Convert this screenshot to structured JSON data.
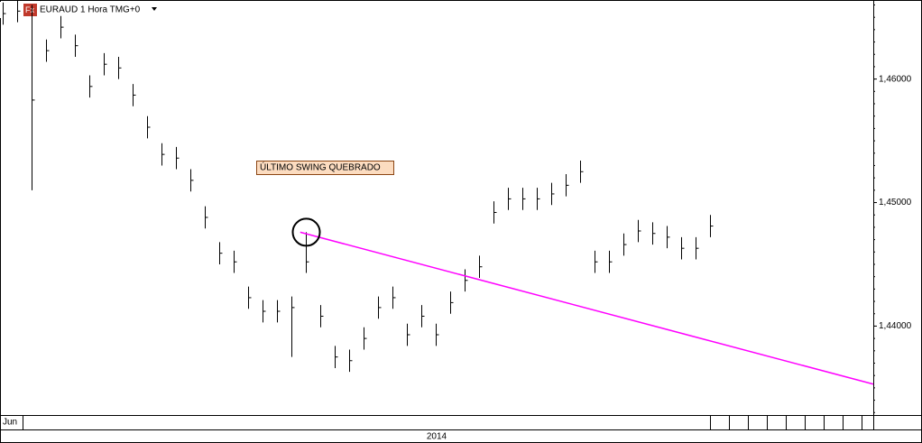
{
  "chart_data": {
    "type": "ohlc",
    "title": "EURAUD 1 Hora TMG+0",
    "annotation": "ÚLTIMO SWING QUEBRADO",
    "period_label": "Jun",
    "year_label": "2014",
    "color": "#000000",
    "trendline": {
      "color": "#ff00ff",
      "points": [
        [
          20.8,
          1.4476
        ],
        [
          60.5,
          1.4353
        ]
      ]
    },
    "circle_at": 21,
    "xlim": [
      0,
      60.5
    ],
    "ylim": [
      1.4328,
      1.4664
    ],
    "yticks": [
      {
        "value": 1.44,
        "label": "1,44000"
      },
      {
        "value": 1.45,
        "label": "1,45000"
      },
      {
        "value": 1.46,
        "label": "1,46000"
      }
    ],
    "high": [
      1.4662,
      1.4664,
      1.466,
      1.4632,
      1.4651,
      1.4636,
      1.4603,
      1.4621,
      1.4618,
      1.4596,
      1.457,
      1.4548,
      1.4545,
      1.4527,
      1.4497,
      1.4468,
      1.4461,
      1.4432,
      1.4421,
      1.4421,
      1.4424,
      1.4476,
      1.4417,
      1.4384,
      1.4381,
      1.4399,
      1.4424,
      1.4432,
      1.4402,
      1.4417,
      1.4402,
      1.4428,
      1.4446,
      1.4457,
      1.4501,
      1.4512,
      1.4512,
      1.4512,
      1.4516,
      1.4523,
      1.4534,
      1.4461,
      1.4461,
      1.4475,
      1.4486,
      1.4484,
      1.4481,
      1.4472,
      1.4472,
      1.449
    ],
    "low": [
      1.4644,
      1.4646,
      1.451,
      1.4614,
      1.4633,
      1.4618,
      1.4585,
      1.4603,
      1.46,
      1.4578,
      1.4552,
      1.453,
      1.4527,
      1.4509,
      1.4479,
      1.445,
      1.4443,
      1.4414,
      1.4403,
      1.4403,
      1.4375,
      1.4443,
      1.4399,
      1.4366,
      1.4363,
      1.4381,
      1.4406,
      1.4414,
      1.4384,
      1.4399,
      1.4384,
      1.441,
      1.4428,
      1.4439,
      1.4483,
      1.4494,
      1.4494,
      1.4494,
      1.4498,
      1.4505,
      1.4516,
      1.4443,
      1.4443,
      1.4457,
      1.4468,
      1.4466,
      1.4463,
      1.4454,
      1.4454,
      1.4472
    ],
    "close": [
      1.4653,
      1.4655,
      1.4583,
      1.4623,
      1.4642,
      1.4627,
      1.4594,
      1.4612,
      1.4609,
      1.4587,
      1.4561,
      1.4539,
      1.4536,
      1.4518,
      1.4488,
      1.4459,
      1.4452,
      1.4423,
      1.4412,
      1.4412,
      1.4415,
      1.4452,
      1.4408,
      1.4375,
      1.4372,
      1.439,
      1.4415,
      1.4423,
      1.4393,
      1.4408,
      1.4393,
      1.4419,
      1.4437,
      1.4448,
      1.4492,
      1.4503,
      1.4503,
      1.4503,
      1.4507,
      1.4514,
      1.4525,
      1.4452,
      1.4452,
      1.4466,
      1.4477,
      1.4475,
      1.4472,
      1.4463,
      1.4463,
      1.4481
    ]
  }
}
